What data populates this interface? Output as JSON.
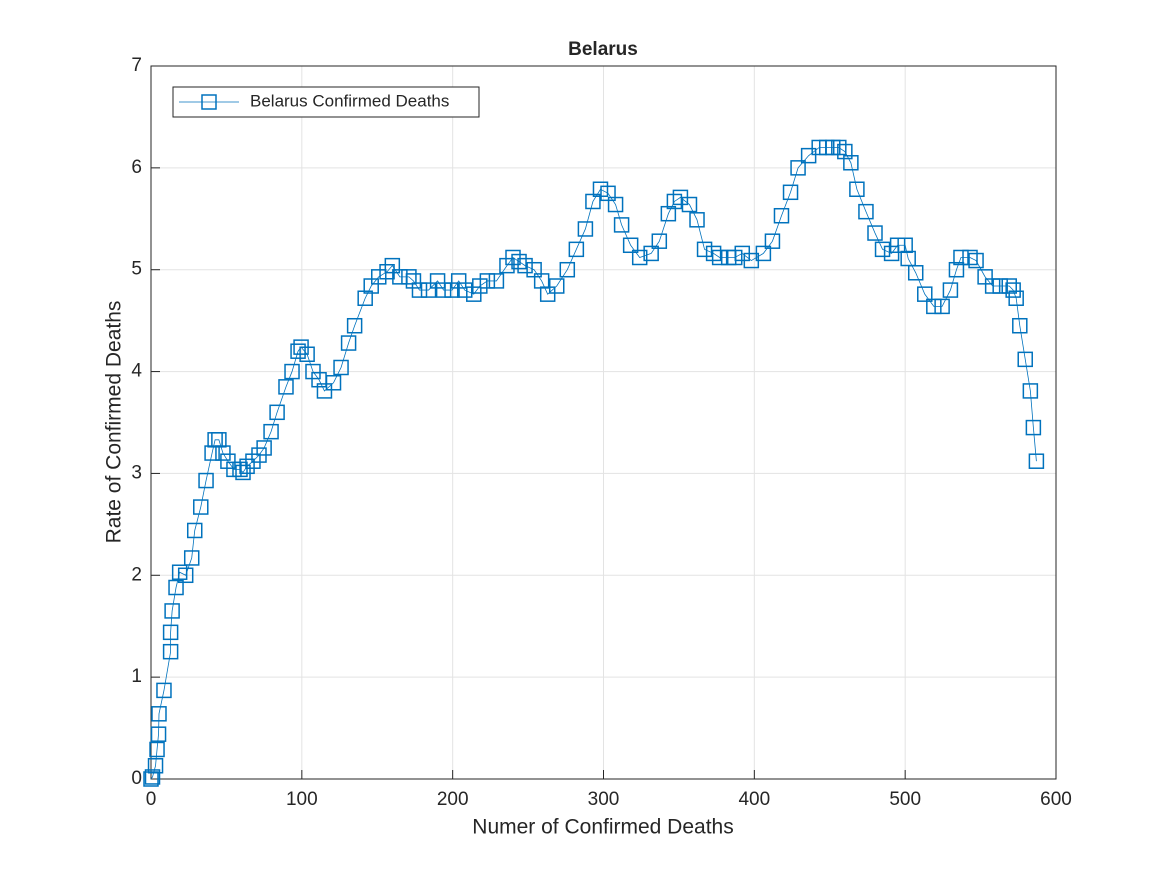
{
  "chart_data": {
    "type": "line",
    "title": "Belarus",
    "x_label": "Numer of Confirmed Deaths",
    "y_label": "Rate of Confirmed Deaths",
    "xlim": [
      0,
      600
    ],
    "ylim": [
      0,
      7
    ],
    "xticks": [
      0,
      100,
      200,
      300,
      400,
      500,
      600
    ],
    "yticks": [
      0,
      1,
      2,
      3,
      4,
      5,
      6,
      7
    ],
    "grid": true,
    "legend_position": "northwest",
    "marker": "square",
    "series": [
      {
        "name": "Belarus Confirmed Deaths",
        "color": "#0072bd",
        "x": [
          0,
          1,
          3,
          4,
          5,
          5.3,
          8.6,
          13,
          13,
          14,
          16.6,
          19,
          23,
          27,
          29,
          33,
          36.5,
          40.5,
          42.5,
          45,
          47.7,
          51,
          55,
          59,
          61,
          63.7,
          67.6,
          71.6,
          75,
          79.6,
          83.6,
          89.5,
          93.5,
          97.5,
          99.5,
          103.5,
          107.4,
          111.4,
          115,
          121,
          126,
          131,
          135,
          142,
          146,
          151,
          156.5,
          160,
          165,
          171,
          174,
          178,
          184,
          190,
          194,
          199.6,
          204,
          208,
          214,
          218,
          223,
          229,
          236,
          240,
          244,
          248,
          254,
          259,
          263,
          269,
          276,
          282,
          288,
          293,
          298,
          303,
          308,
          312,
          318,
          324,
          331.6,
          337,
          343,
          347,
          351,
          357,
          362,
          367,
          373,
          377,
          383,
          387,
          392,
          398,
          406,
          412,
          418,
          424,
          429,
          436,
          443,
          448,
          452,
          456,
          460,
          464,
          468,
          474,
          480,
          485,
          491,
          495,
          500,
          502,
          507,
          513,
          519,
          524.5,
          530,
          534,
          537,
          543,
          547,
          553,
          558,
          563,
          569,
          571.6,
          573.6,
          576,
          579.6,
          583,
          585,
          587
        ],
        "values": [
          0,
          0.02,
          0.13,
          0.29,
          0.44,
          0.64,
          0.87,
          1.25,
          1.44,
          1.65,
          1.88,
          2.03,
          2.0,
          2.17,
          2.44,
          2.67,
          2.93,
          3.2,
          3.33,
          3.33,
          3.2,
          3.12,
          3.04,
          3.04,
          3.01,
          3.07,
          3.12,
          3.18,
          3.25,
          3.41,
          3.6,
          3.85,
          4.0,
          4.2,
          4.24,
          4.17,
          4.0,
          3.92,
          3.81,
          3.89,
          4.04,
          4.28,
          4.45,
          4.72,
          4.84,
          4.93,
          4.98,
          5.04,
          4.93,
          4.93,
          4.89,
          4.8,
          4.8,
          4.89,
          4.8,
          4.8,
          4.89,
          4.8,
          4.76,
          4.84,
          4.89,
          4.89,
          5.04,
          5.12,
          5.08,
          5.04,
          5.0,
          4.89,
          4.76,
          4.84,
          5.0,
          5.2,
          5.4,
          5.67,
          5.79,
          5.75,
          5.64,
          5.44,
          5.24,
          5.12,
          5.16,
          5.28,
          5.55,
          5.67,
          5.71,
          5.64,
          5.49,
          5.2,
          5.16,
          5.12,
          5.12,
          5.12,
          5.16,
          5.09,
          5.16,
          5.28,
          5.53,
          5.76,
          6.0,
          6.12,
          6.2,
          6.2,
          6.2,
          6.2,
          6.16,
          6.05,
          5.79,
          5.57,
          5.36,
          5.2,
          5.16,
          5.24,
          5.24,
          5.11,
          4.97,
          4.76,
          4.64,
          4.64,
          4.8,
          5.0,
          5.12,
          5.12,
          5.09,
          4.93,
          4.84,
          4.84,
          4.84,
          4.8,
          4.72,
          4.45,
          4.12,
          3.81,
          3.45,
          3.12
        ]
      }
    ]
  }
}
